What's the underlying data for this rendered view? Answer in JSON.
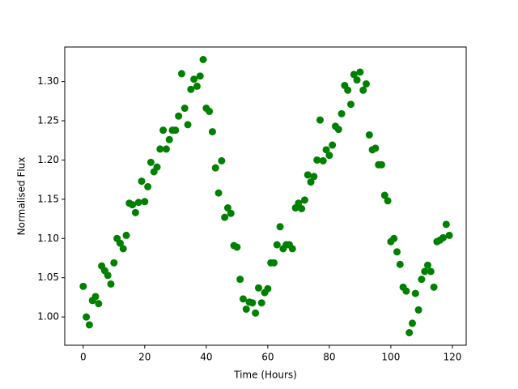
{
  "chart_data": {
    "type": "scatter",
    "xlabel": "Time (Hours)",
    "ylabel": "Normalised Flux",
    "color": "#008000",
    "x": [
      0,
      1,
      2,
      3,
      4,
      5,
      6,
      7,
      8,
      9,
      10,
      11,
      12,
      13,
      14,
      15,
      16,
      17,
      18,
      19,
      20,
      21,
      22,
      23,
      24,
      25,
      26,
      27,
      28,
      29,
      30,
      31,
      32,
      33,
      34,
      35,
      36,
      37,
      38,
      39,
      40,
      41,
      42,
      43,
      44,
      45,
      46,
      47,
      48,
      49,
      50,
      51,
      52,
      53,
      54,
      55,
      56,
      57,
      58,
      59,
      60,
      61,
      62,
      63,
      64,
      65,
      66,
      67,
      68,
      69,
      70,
      71,
      72,
      73,
      74,
      75,
      76,
      77,
      78,
      79,
      80,
      81,
      82,
      83,
      84,
      85,
      86,
      87,
      88,
      89,
      90,
      91,
      92,
      93,
      94,
      95,
      96,
      97,
      98,
      99,
      100,
      101,
      102,
      103,
      104,
      105,
      106,
      107,
      108,
      109,
      110,
      111,
      112,
      113,
      114,
      115,
      116,
      117,
      118,
      119
    ],
    "values": [
      1.039,
      1.0,
      0.99,
      1.021,
      1.026,
      1.017,
      1.065,
      1.059,
      1.053,
      1.042,
      1.069,
      1.1,
      1.094,
      1.087,
      1.104,
      1.145,
      1.143,
      1.133,
      1.146,
      1.173,
      1.147,
      1.166,
      1.197,
      1.185,
      1.191,
      1.214,
      1.238,
      1.214,
      1.226,
      1.238,
      1.238,
      1.256,
      1.31,
      1.266,
      1.245,
      1.29,
      1.303,
      1.294,
      1.307,
      1.328,
      1.266,
      1.262,
      1.236,
      1.19,
      1.158,
      1.199,
      1.127,
      1.139,
      1.132,
      1.091,
      1.089,
      1.048,
      1.023,
      1.01,
      1.019,
      1.018,
      1.005,
      1.037,
      1.018,
      1.031,
      1.036,
      1.069,
      1.069,
      1.092,
      1.115,
      1.087,
      1.092,
      1.092,
      1.087,
      1.139,
      1.145,
      1.138,
      1.149,
      1.181,
      1.172,
      1.179,
      1.2,
      1.251,
      1.199,
      1.213,
      1.206,
      1.219,
      1.243,
      1.239,
      1.259,
      1.295,
      1.289,
      1.271,
      1.309,
      1.302,
      1.312,
      1.289,
      1.297,
      1.232,
      1.213,
      1.215,
      1.194,
      1.194,
      1.155,
      1.148,
      1.096,
      1.1,
      1.083,
      1.067,
      1.038,
      1.033,
      0.98,
      0.992,
      1.03,
      1.009,
      1.048,
      1.058,
      1.066,
      1.058,
      1.038,
      1.096,
      1.098,
      1.101,
      1.118,
      1.104
    ],
    "xlim": [
      -6,
      124.5
    ],
    "ylim": [
      0.964,
      1.344
    ],
    "xticks": [
      0,
      20,
      40,
      60,
      80,
      100,
      120
    ],
    "yticks": [
      {
        "value": 1.0,
        "label": "1.00"
      },
      {
        "value": 1.05,
        "label": "1.05"
      },
      {
        "value": 1.1,
        "label": "1.10"
      },
      {
        "value": 1.15,
        "label": "1.15"
      },
      {
        "value": 1.2,
        "label": "1.20"
      },
      {
        "value": 1.25,
        "label": "1.25"
      },
      {
        "value": 1.3,
        "label": "1.30"
      }
    ]
  }
}
